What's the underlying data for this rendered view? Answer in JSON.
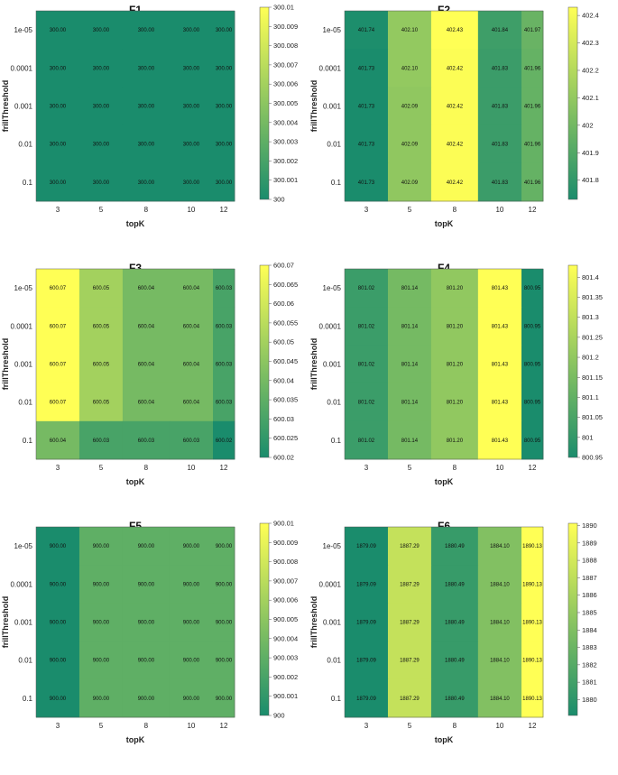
{
  "colormap": {
    "low": "#1a8c6c",
    "high": "#ffff55"
  },
  "chart_data": [
    {
      "type": "heatmap",
      "title": "F1",
      "xlabel": "topK",
      "ylabel": "frillThreshold",
      "x_categories": [
        "3",
        "5",
        "8",
        "10",
        "12"
      ],
      "y_categories": [
        "1e-05",
        "0.0001",
        "0.001",
        "0.01",
        "0.1"
      ],
      "values": [
        [
          300.0,
          300.0,
          300.0,
          300.0,
          300.0
        ],
        [
          300.0,
          300.0,
          300.0,
          300.0,
          300.0
        ],
        [
          300.0,
          300.0,
          300.0,
          300.0,
          300.0
        ],
        [
          300.0,
          300.0,
          300.0,
          300.0,
          300.0
        ],
        [
          300.0,
          300.0,
          300.0,
          300.0,
          300.0
        ]
      ],
      "cell_labels": [
        [
          "300.00",
          "300.00",
          "300.00",
          "300.00",
          "300.00"
        ],
        [
          "300.00",
          "300.00",
          "300.00",
          "300.00",
          "300.00"
        ],
        [
          "300.00",
          "300.00",
          "300.00",
          "300.00",
          "300.00"
        ],
        [
          "300.00",
          "300.00",
          "300.00",
          "300.00",
          "300.00"
        ],
        [
          "300.00",
          "300.00",
          "300.00",
          "300.00",
          "300.00"
        ]
      ],
      "clim": [
        300,
        300.01
      ],
      "colorbar_ticks": [
        "300",
        "300.001",
        "300.002",
        "300.003",
        "300.004",
        "300.005",
        "300.006",
        "300.007",
        "300.008",
        "300.009",
        "300.01"
      ]
    },
    {
      "type": "heatmap",
      "title": "F2",
      "xlabel": "topK",
      "ylabel": "frillThreshold",
      "x_categories": [
        "3",
        "5",
        "8",
        "10",
        "12"
      ],
      "y_categories": [
        "1e-05",
        "0.0001",
        "0.001",
        "0.01",
        "0.1"
      ],
      "values": [
        [
          401.74,
          402.1,
          402.43,
          401.84,
          401.97
        ],
        [
          401.73,
          402.1,
          402.42,
          401.83,
          401.96
        ],
        [
          401.73,
          402.09,
          402.42,
          401.83,
          401.96
        ],
        [
          401.73,
          402.09,
          402.42,
          401.83,
          401.96
        ],
        [
          401.73,
          402.09,
          402.42,
          401.83,
          401.96
        ]
      ],
      "cell_labels": [
        [
          "401.74",
          "402.10",
          "402.43",
          "401.84",
          "401.97"
        ],
        [
          "401.73",
          "402.10",
          "402.42",
          "401.83",
          "401.96"
        ],
        [
          "401.73",
          "402.09",
          "402.42",
          "401.83",
          "401.96"
        ],
        [
          "401.73",
          "402.09",
          "402.42",
          "401.83",
          "401.96"
        ],
        [
          "401.73",
          "402.09",
          "402.42",
          "401.83",
          "401.96"
        ]
      ],
      "clim": [
        401.73,
        402.43
      ],
      "colorbar_ticks": [
        "401.8",
        "401.9",
        "402",
        "402.1",
        "402.2",
        "402.3",
        "402.4"
      ]
    },
    {
      "type": "heatmap",
      "title": "F3",
      "xlabel": "topK",
      "ylabel": "frillThreshold",
      "x_categories": [
        "3",
        "5",
        "8",
        "10",
        "12"
      ],
      "y_categories": [
        "1e-05",
        "0.0001",
        "0.001",
        "0.01",
        "0.1"
      ],
      "values": [
        [
          600.07,
          600.05,
          600.04,
          600.04,
          600.03
        ],
        [
          600.07,
          600.05,
          600.04,
          600.04,
          600.03
        ],
        [
          600.07,
          600.05,
          600.04,
          600.04,
          600.03
        ],
        [
          600.07,
          600.05,
          600.04,
          600.04,
          600.03
        ],
        [
          600.04,
          600.03,
          600.03,
          600.03,
          600.02
        ]
      ],
      "cell_labels": [
        [
          "600.07",
          "600.05",
          "600.04",
          "600.04",
          "600.03"
        ],
        [
          "600.07",
          "600.05",
          "600.04",
          "600.04",
          "600.03"
        ],
        [
          "600.07",
          "600.05",
          "600.04",
          "600.04",
          "600.03"
        ],
        [
          "600.07",
          "600.05",
          "600.04",
          "600.04",
          "600.03"
        ],
        [
          "600.04",
          "600.03",
          "600.03",
          "600.03",
          "600.02"
        ]
      ],
      "clim": [
        600.02,
        600.07
      ],
      "colorbar_ticks": [
        "600.02",
        "600.025",
        "600.03",
        "600.035",
        "600.04",
        "600.045",
        "600.05",
        "600.055",
        "600.06",
        "600.065",
        "600.07"
      ]
    },
    {
      "type": "heatmap",
      "title": "F4",
      "xlabel": "topK",
      "ylabel": "frillThreshold",
      "x_categories": [
        "3",
        "5",
        "8",
        "10",
        "12"
      ],
      "y_categories": [
        "1e-05",
        "0.0001",
        "0.001",
        "0.01",
        "0.1"
      ],
      "values": [
        [
          801.02,
          801.14,
          801.2,
          801.43,
          800.95
        ],
        [
          801.02,
          801.14,
          801.2,
          801.43,
          800.95
        ],
        [
          801.02,
          801.14,
          801.2,
          801.43,
          800.95
        ],
        [
          801.02,
          801.14,
          801.2,
          801.43,
          800.95
        ],
        [
          801.02,
          801.14,
          801.2,
          801.43,
          800.95
        ]
      ],
      "cell_labels": [
        [
          "801.02",
          "801.14",
          "801.20",
          "801.43",
          "800.95"
        ],
        [
          "801.02",
          "801.14",
          "801.20",
          "801.43",
          "800.95"
        ],
        [
          "801.02",
          "801.14",
          "801.20",
          "801.43",
          "800.95"
        ],
        [
          "801.02",
          "801.14",
          "801.20",
          "801.43",
          "800.95"
        ],
        [
          "801.02",
          "801.14",
          "801.20",
          "801.43",
          "800.95"
        ]
      ],
      "clim": [
        800.95,
        801.43
      ],
      "colorbar_ticks": [
        "800.95",
        "801",
        "801.05",
        "801.1",
        "801.15",
        "801.2",
        "801.25",
        "801.3",
        "801.35",
        "801.4"
      ]
    },
    {
      "type": "heatmap",
      "title": "F5",
      "xlabel": "topK",
      "ylabel": "frillThreshold",
      "x_categories": [
        "3",
        "5",
        "8",
        "10",
        "12"
      ],
      "y_categories": [
        "1e-05",
        "0.0001",
        "0.001",
        "0.01",
        "0.1"
      ],
      "values": [
        [
          900.0,
          900.0,
          900.0,
          900.0,
          900.0
        ],
        [
          900.0,
          900.0,
          900.0,
          900.0,
          900.0
        ],
        [
          900.0,
          900.0,
          900.0,
          900.0,
          900.0
        ],
        [
          900.0,
          900.0,
          900.0,
          900.0,
          900.0
        ],
        [
          900.0,
          900.0,
          900.0,
          900.0,
          900.0
        ]
      ],
      "cell_labels": [
        [
          "900.00",
          "900.00",
          "900.00",
          "900.00",
          "900.00"
        ],
        [
          "900.00",
          "900.00",
          "900.00",
          "900.00",
          "900.00"
        ],
        [
          "900.00",
          "900.00",
          "900.00",
          "900.00",
          "900.00"
        ],
        [
          "900.00",
          "900.00",
          "900.00",
          "900.00",
          "900.00"
        ],
        [
          "900.00",
          "900.00",
          "900.00",
          "900.00",
          "900.00"
        ]
      ],
      "color_levels": [
        [
          0,
          0.3,
          0.3,
          0.3,
          0.3
        ],
        [
          0,
          0.3,
          0.3,
          0.3,
          0.3
        ],
        [
          0,
          0.3,
          0.3,
          0.3,
          0.3
        ],
        [
          0,
          0.3,
          0.3,
          0.3,
          0.3
        ],
        [
          0,
          0.3,
          0.3,
          0.3,
          0.3
        ]
      ],
      "clim": [
        900,
        900.01
      ],
      "colorbar_ticks": [
        "900",
        "900.001",
        "900.002",
        "900.003",
        "900.004",
        "900.005",
        "900.006",
        "900.007",
        "900.008",
        "900.009",
        "900.01"
      ]
    },
    {
      "type": "heatmap",
      "title": "F6",
      "xlabel": "topK",
      "ylabel": "frillThreshold",
      "x_categories": [
        "3",
        "5",
        "8",
        "10",
        "12"
      ],
      "y_categories": [
        "1e-05",
        "0.0001",
        "0.001",
        "0.01",
        "0.1"
      ],
      "values": [
        [
          1879.09,
          1887.29,
          1880.49,
          1884.1,
          1890.13
        ],
        [
          1879.09,
          1887.29,
          1880.49,
          1884.1,
          1890.13
        ],
        [
          1879.09,
          1887.29,
          1880.49,
          1884.1,
          1890.13
        ],
        [
          1879.09,
          1887.29,
          1880.49,
          1884.1,
          1890.13
        ],
        [
          1879.09,
          1887.29,
          1880.49,
          1884.1,
          1890.13
        ]
      ],
      "cell_labels": [
        [
          "1879.09",
          "1887.29",
          "1880.49",
          "1884.10",
          "1890.13"
        ],
        [
          "1879.09",
          "1887.29",
          "1880.49",
          "1884.10",
          "1890.13"
        ],
        [
          "1879.09",
          "1887.29",
          "1880.49",
          "1884.10",
          "1890.13"
        ],
        [
          "1879.09",
          "1887.29",
          "1880.49",
          "1884.10",
          "1890.13"
        ],
        [
          "1879.09",
          "1887.29",
          "1880.49",
          "1884.10",
          "1890.13"
        ]
      ],
      "clim": [
        1879.09,
        1890.13
      ],
      "colorbar_ticks": [
        "1880",
        "1881",
        "1882",
        "1883",
        "1884",
        "1885",
        "1886",
        "1887",
        "1888",
        "1889",
        "1890"
      ]
    }
  ]
}
